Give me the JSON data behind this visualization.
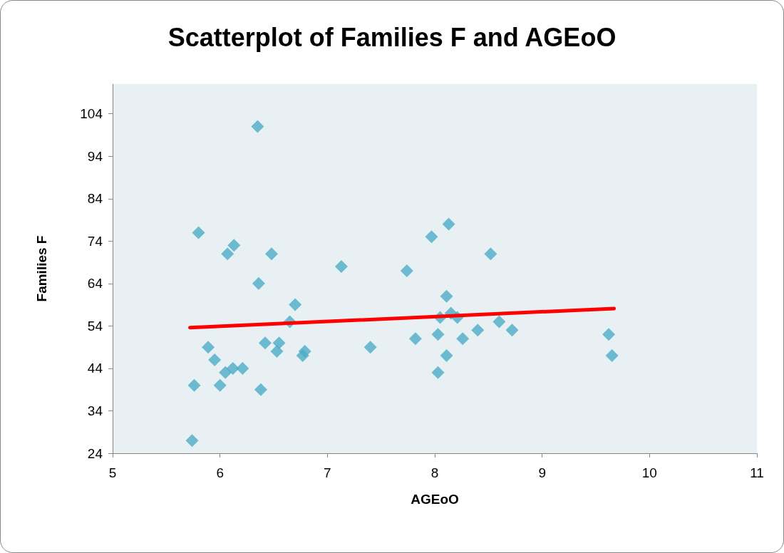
{
  "chart_data": {
    "type": "scatter",
    "title": "Scatterplot of Families F and AGEoO",
    "xlabel": "AGEoO",
    "ylabel": "Families F",
    "xlim": [
      5,
      11
    ],
    "xticks": [
      5,
      6,
      7,
      8,
      9,
      10,
      11
    ],
    "ylim": [
      24,
      111
    ],
    "yticks": [
      24,
      34,
      44,
      54,
      64,
      74,
      84,
      94,
      104
    ],
    "grid": false,
    "marker": "diamond",
    "series": [
      {
        "color": "#4bacc6",
        "x": [
          6.35,
          5.8,
          6.13,
          6.07,
          6.48,
          6.36,
          7.13,
          7.74,
          7.97,
          8.13,
          8.52,
          8.11,
          6.7,
          6.65,
          8.05,
          8.15,
          8.21,
          8.6,
          8.03,
          7.82,
          8.26,
          8.4,
          8.72,
          9.62,
          9.65,
          8.11,
          8.03,
          7.4,
          5.89,
          6.42,
          6.55,
          6.53,
          6.79,
          6.77,
          5.95,
          6.05,
          6.12,
          6.21,
          6.0,
          5.76,
          6.38,
          5.74
        ],
        "values": [
          101,
          76,
          73,
          71,
          71,
          64,
          68,
          67,
          75,
          78,
          71,
          61,
          59,
          55,
          56,
          57,
          56,
          55,
          52,
          51,
          51,
          53,
          53,
          52,
          47,
          47,
          43,
          49,
          49,
          50,
          50,
          48,
          48,
          47,
          46,
          43,
          44,
          44,
          40,
          40,
          39,
          27
        ]
      },
      {
        "type": "line",
        "color": "#ff0000",
        "marker": "none",
        "x": [
          5.72,
          9.67
        ],
        "values": [
          53.6,
          58.1
        ]
      }
    ]
  }
}
